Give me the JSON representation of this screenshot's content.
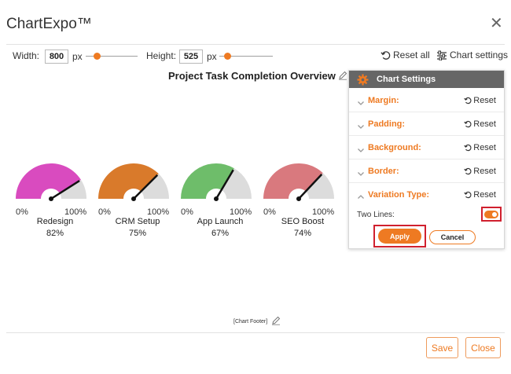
{
  "app": {
    "title": "ChartExpo™"
  },
  "toolbar": {
    "width_label": "Width:",
    "width_value": "800",
    "height_label": "Height:",
    "height_value": "525",
    "unit": "px",
    "reset_all_label": "Reset all",
    "chart_settings_label": "Chart settings"
  },
  "chart": {
    "title": "Project Task Completion Overview",
    "footer": "[Chart Footer]"
  },
  "chart_data": {
    "type": "gauge",
    "title": "Project Task Completion Overview",
    "min_label": "0%",
    "max_label": "100%",
    "items": [
      {
        "name": "Redesign",
        "value": 82,
        "label": "82%",
        "color": "#d94bbf"
      },
      {
        "name": "CRM Setup",
        "value": 75,
        "label": "75%",
        "color": "#d97a2b"
      },
      {
        "name": "App Launch",
        "value": 67,
        "label": "67%",
        "color": "#6ebd6a"
      },
      {
        "name": "SEO Boost",
        "value": 74,
        "label": "74%",
        "color": "#d9797e"
      }
    ]
  },
  "settings_panel": {
    "title": "Chart Settings",
    "sections": [
      {
        "label": "Margin:",
        "reset": "Reset",
        "expanded": false
      },
      {
        "label": "Padding:",
        "reset": "Reset",
        "expanded": false
      },
      {
        "label": "Background:",
        "reset": "Reset",
        "expanded": false
      },
      {
        "label": "Border:",
        "reset": "Reset",
        "expanded": false
      },
      {
        "label": "Variation Type:",
        "reset": "Reset",
        "expanded": true
      }
    ],
    "two_lines_label": "Two Lines:",
    "two_lines_on": true,
    "apply_label": "Apply",
    "cancel_label": "Cancel"
  },
  "footer_buttons": {
    "save": "Save",
    "close": "Close"
  },
  "colors": {
    "accent": "#ee7a22",
    "highlight": "#d0202e",
    "panel_header": "#666666",
    "gauge_rest": "#dcdcdc"
  }
}
